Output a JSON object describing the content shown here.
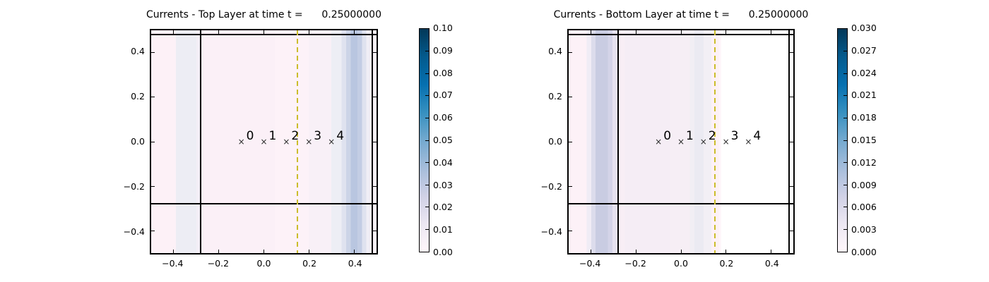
{
  "figure": {
    "background": "#ffffff",
    "frame_color": "#000000"
  },
  "colormap_stops": [
    "#fff7fb",
    "#ece7f2",
    "#d0d1e6",
    "#a6bddb",
    "#74a9cf",
    "#3690c0",
    "#0570b0",
    "#045a8d",
    "#023858"
  ],
  "chart_data": [
    {
      "type": "heatmap",
      "title": "Currents - Top Layer at time t =      0.25000000",
      "xlim": [
        -0.5,
        0.5
      ],
      "ylim": [
        -0.5,
        0.5
      ],
      "xtick_positions": [
        -0.4,
        -0.2,
        0.0,
        0.2,
        0.4
      ],
      "xtick_labels": [
        "−0.4",
        "−0.2",
        "0.0",
        "0.2",
        "0.4"
      ],
      "ytick_positions": [
        0.4,
        0.2,
        0.0,
        -0.2,
        -0.4
      ],
      "ytick_labels": [
        "0.4",
        "0.2",
        "0.0",
        "−0.2",
        "−0.4"
      ],
      "boundary_lines": {
        "vertical_x": [
          -0.28,
          0.48
        ],
        "horizontal_y": [
          0.48,
          -0.28
        ],
        "color": "#000000"
      },
      "dashed_line": {
        "x": 0.15,
        "color": "#cbbd2b"
      },
      "gauges": {
        "marker": "×",
        "x": [
          -0.1,
          0.0,
          0.1,
          0.2,
          0.3
        ],
        "y": 0.0,
        "labels": [
          "0",
          "1",
          "2",
          "3",
          "4"
        ]
      },
      "bands": [
        {
          "from": -0.5,
          "to": -0.39,
          "color": "#fdf1f7"
        },
        {
          "from": -0.39,
          "to": -0.3,
          "color": "#ededf4"
        },
        {
          "from": -0.3,
          "to": -0.28,
          "color": "#f3eef6"
        },
        {
          "from": -0.28,
          "to": 0.05,
          "color": "#fbf0f7"
        },
        {
          "from": 0.05,
          "to": 0.2,
          "color": "#fdf2f8"
        },
        {
          "from": 0.2,
          "to": 0.3,
          "color": "#f8f0f7"
        },
        {
          "from": 0.3,
          "to": 0.345,
          "color": "#edeef5"
        },
        {
          "from": 0.345,
          "to": 0.365,
          "color": "#dfe2ef"
        },
        {
          "from": 0.365,
          "to": 0.385,
          "color": "#ccd4e7"
        },
        {
          "from": 0.385,
          "to": 0.415,
          "color": "#b9c6e0"
        },
        {
          "from": 0.415,
          "to": 0.435,
          "color": "#c3cde4"
        },
        {
          "from": 0.435,
          "to": 0.455,
          "color": "#dfe2ef"
        },
        {
          "from": 0.455,
          "to": 0.47,
          "color": "#f0eef6"
        },
        {
          "from": 0.47,
          "to": 0.5,
          "color": "#faf3f8"
        }
      ],
      "colorbar": {
        "min": 0.0,
        "max": 0.1,
        "colormap": "PuBu",
        "tick_labels_top_to_bottom": [
          "0.10",
          "0.09",
          "0.08",
          "0.07",
          "0.06",
          "0.05",
          "0.04",
          "0.03",
          "0.02",
          "0.01",
          "0.00"
        ]
      }
    },
    {
      "type": "heatmap",
      "title": "Currents - Bottom Layer at time t =      0.25000000",
      "xlim": [
        -0.5,
        0.5
      ],
      "ylim": [
        -0.5,
        0.5
      ],
      "xtick_positions": [
        -0.4,
        -0.2,
        0.0,
        0.2,
        0.4
      ],
      "xtick_labels": [
        "−0.4",
        "−0.2",
        "0.0",
        "0.2",
        "0.4"
      ],
      "ytick_positions": [
        0.4,
        0.2,
        0.0,
        -0.2,
        -0.4
      ],
      "ytick_labels": [
        "0.4",
        "0.2",
        "0.0",
        "−0.2",
        "−0.4"
      ],
      "boundary_lines": {
        "vertical_x": [
          -0.28,
          0.48
        ],
        "horizontal_y": [
          0.48,
          -0.28
        ],
        "color": "#000000"
      },
      "dashed_line": {
        "x": 0.15,
        "color": "#cbbd2b"
      },
      "gauges": {
        "marker": "×",
        "x": [
          -0.1,
          0.0,
          0.1,
          0.2,
          0.3
        ],
        "y": 0.0,
        "labels": [
          "0",
          "1",
          "2",
          "3",
          "4"
        ]
      },
      "bands": [
        {
          "from": -0.5,
          "to": -0.42,
          "color": "#fdf1f7"
        },
        {
          "from": -0.42,
          "to": -0.4,
          "color": "#f0ecf5"
        },
        {
          "from": -0.4,
          "to": -0.38,
          "color": "#dcdcec"
        },
        {
          "from": -0.38,
          "to": -0.325,
          "color": "#c9cce2"
        },
        {
          "from": -0.325,
          "to": -0.305,
          "color": "#d4d4e8"
        },
        {
          "from": -0.305,
          "to": -0.28,
          "color": "#e6e3f0"
        },
        {
          "from": -0.28,
          "to": -0.25,
          "color": "#f8eef5"
        },
        {
          "from": -0.25,
          "to": -0.05,
          "color": "#f5edf5"
        },
        {
          "from": -0.05,
          "to": 0.04,
          "color": "#f6eef5"
        },
        {
          "from": 0.04,
          "to": 0.06,
          "color": "#f1eef4"
        },
        {
          "from": 0.06,
          "to": 0.1,
          "color": "#ebeaf2"
        },
        {
          "from": 0.1,
          "to": 0.135,
          "color": "#f2eff5"
        },
        {
          "from": 0.135,
          "to": 0.17,
          "color": "#fdf1f7"
        },
        {
          "from": 0.17,
          "to": 0.18,
          "color": "#fef6fa"
        },
        {
          "from": 0.18,
          "to": 0.5,
          "color": "#ffffff"
        }
      ],
      "colorbar": {
        "min": 0.0,
        "max": 0.03,
        "colormap": "PuBu",
        "tick_labels_top_to_bottom": [
          "0.030",
          "0.027",
          "0.024",
          "0.021",
          "0.018",
          "0.015",
          "0.012",
          "0.009",
          "0.006",
          "0.003",
          "0.000"
        ]
      }
    }
  ]
}
